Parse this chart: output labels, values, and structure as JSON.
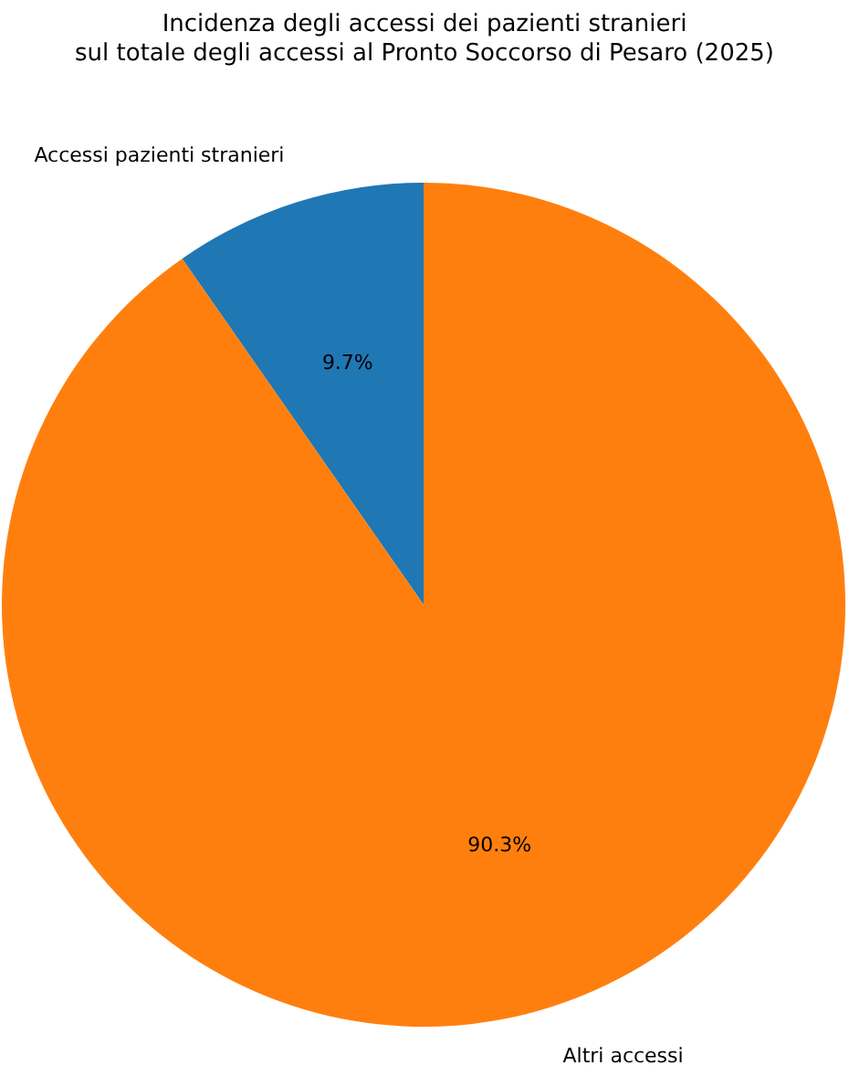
{
  "chart_data": {
    "type": "pie",
    "title": "Incidenza degli accessi dei pazienti stranieri\nsul totale degli accessi al Pronto Soccorso di Pesaro (2025)",
    "categories": [
      "Accessi pazienti stranieri",
      "Altri accessi"
    ],
    "values": [
      9.7,
      90.3
    ],
    "value_labels": [
      "9.7%",
      "90.3%"
    ],
    "colors": [
      "#1f77b4",
      "#ff7f0e"
    ]
  }
}
